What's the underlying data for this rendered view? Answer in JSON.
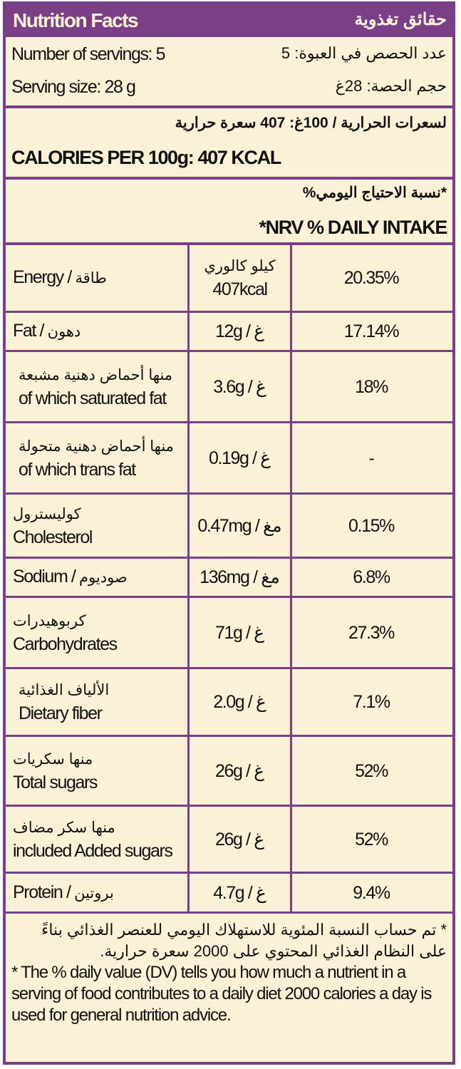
{
  "colors": {
    "accent": "#7a3f86",
    "background": "#fbf1d6"
  },
  "header": {
    "title_en": "Nutrition Facts",
    "title_ar": "حقائق تغذوية"
  },
  "servings": {
    "count_en": "Number of servings: 5",
    "count_ar": "عدد الحصص في العبوة: 5",
    "size_en": "Serving size: 28 g",
    "size_ar": "حجم الحصة: 28غ"
  },
  "calories": {
    "ar": "لسعرات الحرارية / 100غ: 407 سعرة حرارية",
    "en": "CALORIES PER 100g: 407 KCAL"
  },
  "nrv": {
    "ar": "*نسبة الاحتياج اليومي%",
    "en": "*NRV % DAILY INTAKE"
  },
  "rows": [
    {
      "label_en": "Energy /",
      "label_ar": "طاقة",
      "amount_ar": "كيلو كالوري",
      "amount": "407kcal",
      "pct": "20.35%"
    },
    {
      "label_en": "Fat /",
      "label_ar": "دهون",
      "amount": "12g / غ",
      "pct": "17.14%"
    },
    {
      "label_ar": "منها أحماض دهنية مشبعة",
      "label_en": "of which saturated fat",
      "amount": "3.6g / غ",
      "pct": "18%"
    },
    {
      "label_ar": "منها أحماض دهنية متحولة",
      "label_en": "of which trans fat",
      "amount": "0.19g / غ",
      "pct": "-"
    },
    {
      "label_ar": "كوليسترول",
      "label_en": "Cholesterol",
      "amount": "0.47mg / مغ",
      "pct": "0.15%"
    },
    {
      "label_en": "Sodium /",
      "label_ar": "صوديوم",
      "amount": "136mg / مغ",
      "pct": "6.8%"
    },
    {
      "label_ar": "كربوهيدرات",
      "label_en": "Carbohydrates",
      "amount": "71g / غ",
      "pct": "27.3%"
    },
    {
      "label_ar": "الألياف الغذائية",
      "label_en": "Dietary fiber",
      "amount": "2.0g / غ",
      "pct": "7.1%"
    },
    {
      "label_ar": "منها سكريات",
      "label_en": "Total sugars",
      "amount": "26g / غ",
      "pct": "52%"
    },
    {
      "label_ar": "منها سكر مضاف",
      "label_en": "included Added sugars",
      "amount": "26g / غ",
      "pct": "52%"
    },
    {
      "label_en": "Protein /",
      "label_ar": "بروتين",
      "amount": "4.7g / غ",
      "pct": "9.4%"
    }
  ],
  "footer": {
    "ar": "* تم حساب النسبة المئوية للاستهلاك اليومي للعنصر الغذائي بناءً على النظام الغذائي المحتوي على 2000 سعرة حرارية.",
    "en": "* The % daily value (DV) tells you how much a nutrient in a serving of food contributes to a daily diet 2000 calories a day is used for general nutrition advice."
  }
}
